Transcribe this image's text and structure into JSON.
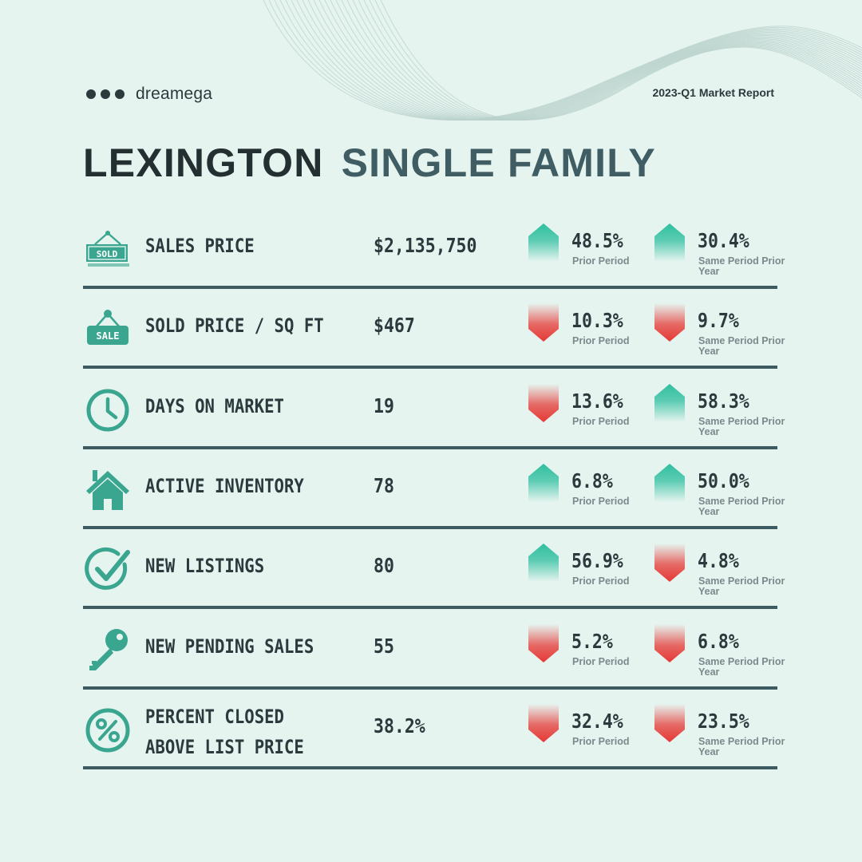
{
  "brand": {
    "name": "dreamega",
    "report": "2023-Q1 Market Report"
  },
  "title": {
    "city": "LEXINGTON",
    "type": "SINGLE FAMILY"
  },
  "colors": {
    "up": "#2fbf9f",
    "down": "#e53935",
    "divider": "#3d5a60",
    "icon": "#3aa68f"
  },
  "rows": [
    {
      "icon": "sold-sign-icon",
      "label": "SALES PRICE",
      "value": "$2,135,750",
      "prior": {
        "dir": "up",
        "pct": "48.5%",
        "note": "Prior Period"
      },
      "year": {
        "dir": "up",
        "pct": "30.4%",
        "note": "Same Period Prior Year"
      }
    },
    {
      "icon": "sale-tag-icon",
      "label": "SOLD PRICE / SQ FT",
      "value": "$467",
      "prior": {
        "dir": "down",
        "pct": "10.3%",
        "note": "Prior Period"
      },
      "year": {
        "dir": "down",
        "pct": "9.7%",
        "note": "Same Period Prior Year"
      }
    },
    {
      "icon": "clock-icon",
      "label": "DAYS ON MARKET",
      "value": "19",
      "prior": {
        "dir": "down",
        "pct": "13.6%",
        "note": "Prior Period"
      },
      "year": {
        "dir": "up",
        "pct": "58.3%",
        "note": "Same Period Prior Year"
      }
    },
    {
      "icon": "house-icon",
      "label": "ACTIVE INVENTORY",
      "value": "78",
      "prior": {
        "dir": "up",
        "pct": "6.8%",
        "note": "Prior Period"
      },
      "year": {
        "dir": "up",
        "pct": "50.0%",
        "note": "Same Period Prior Year"
      }
    },
    {
      "icon": "check-circle-icon",
      "label": "NEW LISTINGS",
      "value": "80",
      "prior": {
        "dir": "up",
        "pct": "56.9%",
        "note": "Prior Period"
      },
      "year": {
        "dir": "down",
        "pct": "4.8%",
        "note": "Same Period Prior Year"
      }
    },
    {
      "icon": "key-icon",
      "label": "NEW PENDING SALES",
      "value": "55",
      "prior": {
        "dir": "down",
        "pct": "5.2%",
        "note": "Prior Period"
      },
      "year": {
        "dir": "down",
        "pct": "6.8%",
        "note": "Same Period Prior Year"
      }
    },
    {
      "icon": "percent-circle-icon",
      "label": "PERCENT CLOSED ABOVE LIST PRICE",
      "label_line1": "PERCENT CLOSED",
      "label_line2": "ABOVE LIST PRICE",
      "value": "38.2%",
      "prior": {
        "dir": "down",
        "pct": "32.4%",
        "note": "Prior Period"
      },
      "year": {
        "dir": "down",
        "pct": "23.5%",
        "note": "Same Period Prior Year"
      }
    }
  ]
}
